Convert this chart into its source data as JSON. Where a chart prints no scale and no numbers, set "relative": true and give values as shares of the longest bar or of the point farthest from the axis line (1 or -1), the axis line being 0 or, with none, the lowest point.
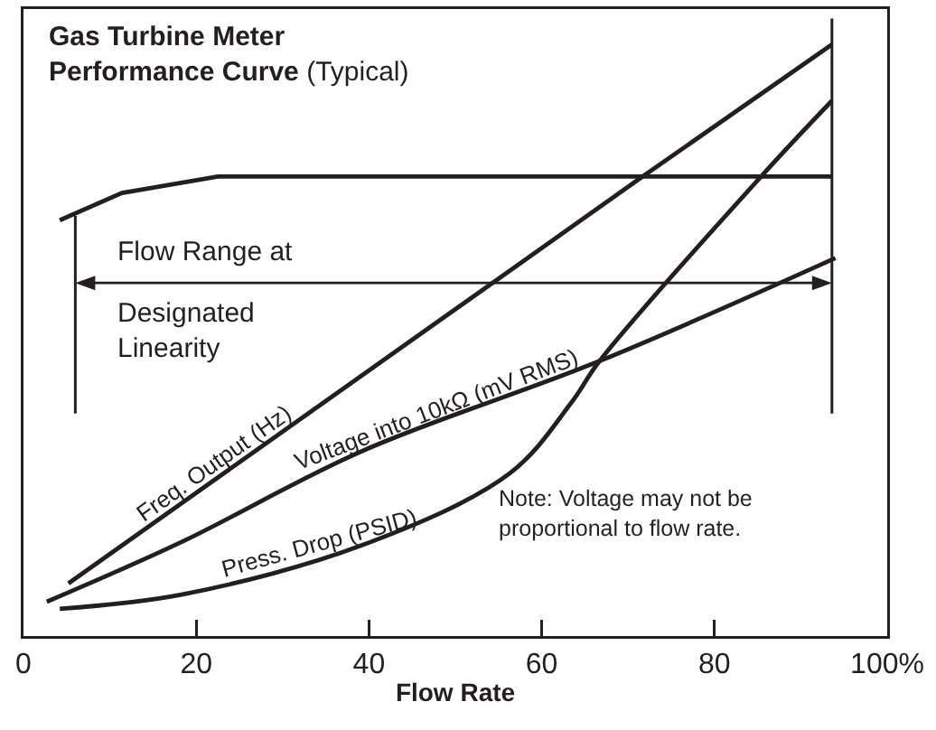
{
  "chart_data": {
    "type": "line",
    "relative": true,
    "title": "Gas Turbine Meter\nPerformance Curve",
    "subtitle": "(Typical)",
    "xlabel": "Flow Rate",
    "xlim": [
      0,
      100
    ],
    "xticks": [
      0,
      20,
      40,
      60,
      80,
      {
        "value": 100,
        "label": "100%"
      }
    ],
    "tick_labels": "x",
    "grid": false,
    "legend": false,
    "marker": "none",
    "line_style": "solid",
    "series": [
      {
        "name": "Freq. Output (Hz)",
        "color": "#231f20",
        "x": [
          5.2,
          71.7,
          93.6
        ],
        "values": [
          0.089,
          0.777,
          1.0
        ]
      },
      {
        "name": "Voltage into 10kΩ (mV RMS)",
        "color": "#231f20",
        "x": [
          2.7,
          18.3,
          39.1,
          66.7,
          94.0
        ],
        "values": [
          0.058,
          0.159,
          0.312,
          0.465,
          0.639
        ]
      },
      {
        "name": "Press. Drop (PSID)",
        "color": "#231f20",
        "x": [
          4.2,
          18.3,
          39.1,
          56.3,
          63.4,
          66.7,
          85.4,
          93.6
        ],
        "values": [
          0.046,
          0.07,
          0.153,
          0.275,
          0.394,
          0.465,
          0.777,
          0.905
        ]
      },
      {
        "color": "#231f20",
        "x": [
          4.2,
          11.4,
          22.5,
          93.6
        ],
        "values": [
          0.703,
          0.749,
          0.777,
          0.777
        ]
      }
    ],
    "ref_lines": [
      {
        "axis": "x",
        "value": 6,
        "color": "#231f20"
      },
      {
        "axis": "x",
        "value": 93.6,
        "color": "#231f20"
      }
    ],
    "annotations": [
      "Flow Range at\nDesignated\nLinearity",
      "Note: Voltage may not be\nproportional to flow rate."
    ]
  }
}
